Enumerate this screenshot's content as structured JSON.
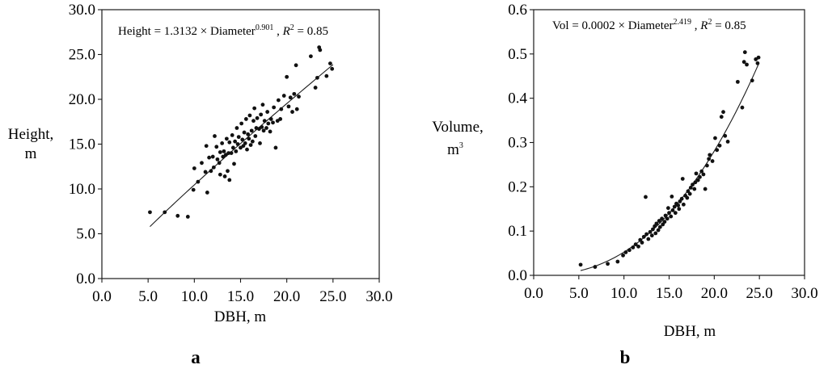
{
  "chart_data": [
    {
      "type": "scatter",
      "panel_label": "a",
      "equation": {
        "prefix": "Height = 1.3132 × Diameter",
        "exponent": "0.901",
        "r2_sep": " , ",
        "r2_symbol": "R",
        "r2_sup": "2",
        "r2_value": " = 0.85"
      },
      "xlabel": "DBH, m",
      "ylabel_line1": "Height,",
      "ylabel_line2": "m",
      "ylabel_sup": "",
      "xlim": [
        0,
        30
      ],
      "ylim": [
        0,
        30
      ],
      "xticks": [
        "0.0",
        "5.0",
        "10.0",
        "15.0",
        "20.0",
        "25.0",
        "30.0"
      ],
      "yticks": [
        "0.0",
        "5.0",
        "10.0",
        "15.0",
        "20.0",
        "25.0",
        "30.0"
      ],
      "fit": {
        "coef": 1.3132,
        "exp": 0.901,
        "x_range": [
          5.2,
          25
        ]
      },
      "points": [
        [
          5.2,
          7.4
        ],
        [
          6.8,
          7.4
        ],
        [
          8.2,
          7.0
        ],
        [
          9.3,
          6.9
        ],
        [
          9.9,
          9.9
        ],
        [
          10.0,
          12.3
        ],
        [
          10.4,
          10.8
        ],
        [
          10.8,
          12.9
        ],
        [
          11.2,
          11.9
        ],
        [
          11.3,
          14.8
        ],
        [
          11.4,
          9.6
        ],
        [
          11.6,
          13.5
        ],
        [
          11.8,
          12.0
        ],
        [
          12.0,
          13.6
        ],
        [
          12.1,
          12.4
        ],
        [
          12.2,
          15.9
        ],
        [
          12.4,
          14.7
        ],
        [
          12.5,
          13.3
        ],
        [
          12.7,
          12.9
        ],
        [
          12.8,
          11.6
        ],
        [
          12.8,
          14.1
        ],
        [
          13.0,
          15.1
        ],
        [
          13.1,
          13.6
        ],
        [
          13.2,
          14.2
        ],
        [
          13.3,
          11.4
        ],
        [
          13.4,
          13.8
        ],
        [
          13.5,
          15.6
        ],
        [
          13.6,
          12.0
        ],
        [
          13.7,
          14.0
        ],
        [
          13.8,
          11.0
        ],
        [
          13.8,
          15.2
        ],
        [
          14.0,
          14.0
        ],
        [
          14.1,
          16.0
        ],
        [
          14.2,
          14.6
        ],
        [
          14.3,
          12.8
        ],
        [
          14.4,
          15.3
        ],
        [
          14.5,
          14.2
        ],
        [
          14.6,
          16.8
        ],
        [
          14.7,
          15.0
        ],
        [
          14.8,
          15.8
        ],
        [
          15.0,
          14.6
        ],
        [
          15.1,
          17.3
        ],
        [
          15.2,
          15.5
        ],
        [
          15.3,
          14.8
        ],
        [
          15.4,
          16.3
        ],
        [
          15.5,
          15.1
        ],
        [
          15.6,
          17.8
        ],
        [
          15.7,
          14.4
        ],
        [
          15.8,
          16.1
        ],
        [
          15.9,
          15.6
        ],
        [
          16.0,
          18.2
        ],
        [
          16.1,
          14.9
        ],
        [
          16.2,
          16.5
        ],
        [
          16.3,
          15.3
        ],
        [
          16.4,
          17.6
        ],
        [
          16.5,
          19.0
        ],
        [
          16.6,
          15.9
        ],
        [
          16.7,
          16.8
        ],
        [
          16.8,
          17.9
        ],
        [
          17.0,
          16.7
        ],
        [
          17.1,
          15.1
        ],
        [
          17.2,
          18.3
        ],
        [
          17.3,
          16.9
        ],
        [
          17.4,
          19.4
        ],
        [
          17.5,
          16.5
        ],
        [
          17.6,
          17.6
        ],
        [
          17.8,
          16.8
        ],
        [
          17.9,
          18.6
        ],
        [
          18.0,
          17.3
        ],
        [
          18.2,
          16.4
        ],
        [
          18.3,
          17.8
        ],
        [
          18.5,
          17.4
        ],
        [
          18.6,
          19.1
        ],
        [
          18.8,
          14.6
        ],
        [
          19.0,
          17.6
        ],
        [
          19.1,
          19.9
        ],
        [
          19.3,
          17.8
        ],
        [
          19.4,
          18.9
        ],
        [
          19.7,
          20.4
        ],
        [
          20.0,
          22.5
        ],
        [
          20.2,
          19.2
        ],
        [
          20.4,
          20.2
        ],
        [
          20.6,
          18.6
        ],
        [
          20.8,
          20.6
        ],
        [
          21.0,
          23.8
        ],
        [
          21.1,
          18.9
        ],
        [
          21.3,
          20.3
        ],
        [
          22.6,
          24.8
        ],
        [
          23.1,
          21.3
        ],
        [
          23.3,
          22.4
        ],
        [
          23.5,
          25.8
        ],
        [
          23.6,
          25.5
        ],
        [
          24.3,
          22.6
        ],
        [
          24.7,
          24.0
        ],
        [
          24.9,
          23.4
        ]
      ]
    },
    {
      "type": "scatter",
      "panel_label": "b",
      "equation": {
        "prefix": "Vol = 0.0002 × Diameter",
        "exponent": "2.419",
        "r2_sep": " , ",
        "r2_symbol": "R",
        "r2_sup": "2",
        "r2_value": " = 0.85"
      },
      "xlabel": "DBH, m",
      "ylabel_line1": "Volume,",
      "ylabel_line2": "m",
      "ylabel_sup": "3",
      "xlim": [
        0,
        30
      ],
      "ylim": [
        0,
        0.6
      ],
      "xticks": [
        "0.0",
        "5.0",
        "10.0",
        "15.0",
        "20.0",
        "25.0",
        "30.0"
      ],
      "yticks": [
        "0.0",
        "0.1",
        "0.2",
        "0.3",
        "0.4",
        "0.5",
        "0.6"
      ],
      "fit": {
        "coef": 0.0002,
        "exp": 2.419,
        "x_range": [
          5.2,
          24.9
        ]
      },
      "points": [
        [
          5.2,
          0.024
        ],
        [
          6.8,
          0.019
        ],
        [
          8.2,
          0.026
        ],
        [
          9.3,
          0.031
        ],
        [
          9.9,
          0.045
        ],
        [
          10.2,
          0.052
        ],
        [
          10.6,
          0.057
        ],
        [
          11.0,
          0.063
        ],
        [
          11.3,
          0.07
        ],
        [
          11.6,
          0.065
        ],
        [
          11.8,
          0.08
        ],
        [
          12.0,
          0.074
        ],
        [
          12.2,
          0.087
        ],
        [
          12.4,
          0.177
        ],
        [
          12.5,
          0.093
        ],
        [
          12.7,
          0.082
        ],
        [
          12.9,
          0.098
        ],
        [
          13.1,
          0.09
        ],
        [
          13.2,
          0.104
        ],
        [
          13.4,
          0.111
        ],
        [
          13.5,
          0.095
        ],
        [
          13.6,
          0.117
        ],
        [
          13.8,
          0.102
        ],
        [
          13.9,
          0.123
        ],
        [
          14.0,
          0.109
        ],
        [
          14.2,
          0.128
        ],
        [
          14.3,
          0.115
        ],
        [
          14.5,
          0.121
        ],
        [
          14.6,
          0.135
        ],
        [
          14.8,
          0.128
        ],
        [
          14.9,
          0.152
        ],
        [
          15.0,
          0.141
        ],
        [
          15.2,
          0.133
        ],
        [
          15.3,
          0.178
        ],
        [
          15.4,
          0.147
        ],
        [
          15.6,
          0.155
        ],
        [
          15.7,
          0.141
        ],
        [
          15.8,
          0.162
        ],
        [
          16.0,
          0.158
        ],
        [
          16.1,
          0.15
        ],
        [
          16.2,
          0.167
        ],
        [
          16.4,
          0.173
        ],
        [
          16.5,
          0.218
        ],
        [
          16.6,
          0.16
        ],
        [
          16.8,
          0.18
        ],
        [
          17.0,
          0.175
        ],
        [
          17.1,
          0.19
        ],
        [
          17.3,
          0.184
        ],
        [
          17.4,
          0.198
        ],
        [
          17.6,
          0.205
        ],
        [
          17.8,
          0.195
        ],
        [
          17.9,
          0.21
        ],
        [
          18.0,
          0.23
        ],
        [
          18.2,
          0.215
        ],
        [
          18.4,
          0.222
        ],
        [
          18.6,
          0.235
        ],
        [
          18.8,
          0.228
        ],
        [
          19.0,
          0.195
        ],
        [
          19.2,
          0.248
        ],
        [
          19.4,
          0.263
        ],
        [
          19.5,
          0.272
        ],
        [
          19.8,
          0.258
        ],
        [
          20.1,
          0.31
        ],
        [
          20.3,
          0.283
        ],
        [
          20.6,
          0.293
        ],
        [
          20.8,
          0.358
        ],
        [
          21.0,
          0.369
        ],
        [
          21.2,
          0.315
        ],
        [
          21.5,
          0.302
        ],
        [
          22.6,
          0.437
        ],
        [
          23.1,
          0.379
        ],
        [
          23.3,
          0.482
        ],
        [
          23.4,
          0.504
        ],
        [
          23.6,
          0.476
        ],
        [
          24.2,
          0.44
        ],
        [
          24.6,
          0.488
        ],
        [
          24.8,
          0.479
        ],
        [
          24.9,
          0.492
        ]
      ]
    }
  ]
}
